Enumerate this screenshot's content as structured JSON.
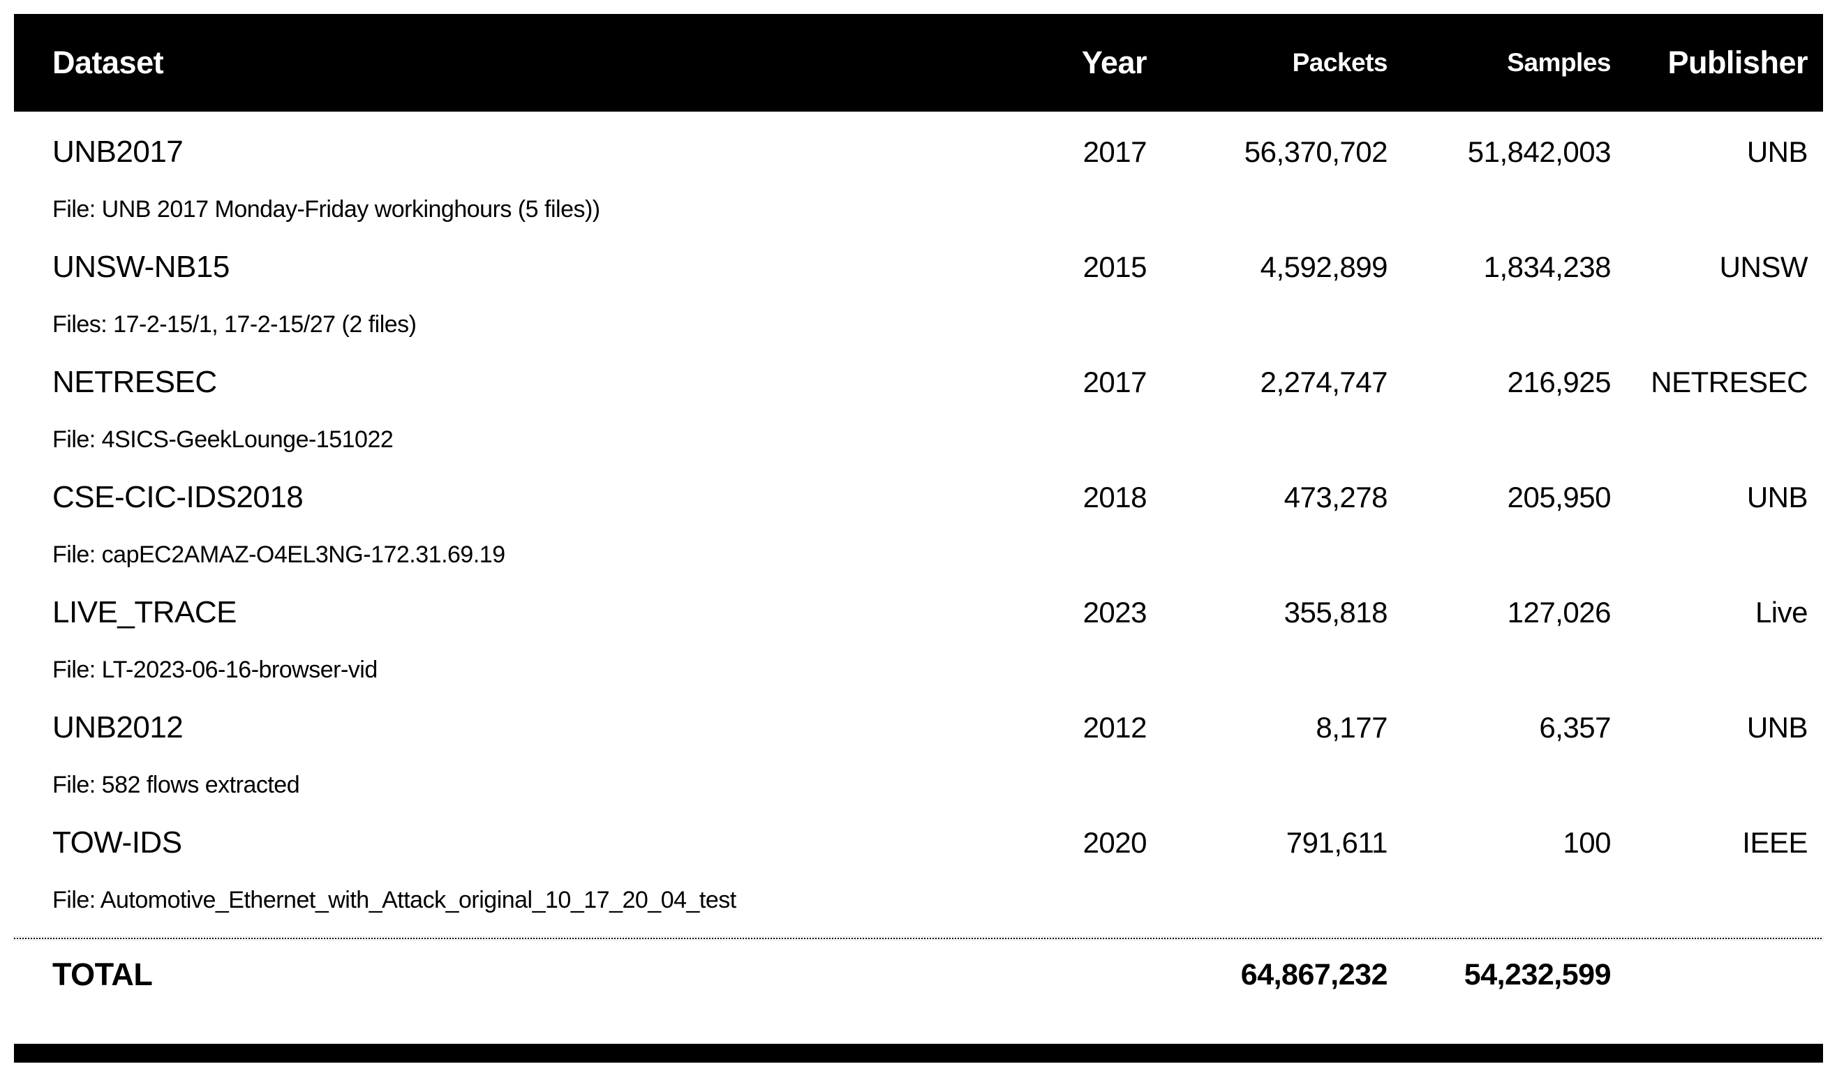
{
  "table": {
    "columns": {
      "dataset": "Dataset",
      "year": "Year",
      "packets": "Packets",
      "samples": "Samples",
      "publisher": "Publisher"
    },
    "rows": [
      {
        "name": "UNB2017",
        "year": "2017",
        "packets": "56,370,702",
        "samples": "51,842,003",
        "publisher": "UNB",
        "file": "File: UNB 2017 Monday-Friday workinghours (5 files))"
      },
      {
        "name": "UNSW-NB15",
        "year": "2015",
        "packets": "4,592,899",
        "samples": "1,834,238",
        "publisher": "UNSW",
        "file": "Files: 17-2-15/1, 17-2-15/27 (2 files)"
      },
      {
        "name": "NETRESEC",
        "year": "2017",
        "packets": "2,274,747",
        "samples": "216,925",
        "publisher": "NETRESEC",
        "file": "File: 4SICS-GeekLounge-151022"
      },
      {
        "name": "CSE-CIC-IDS2018",
        "year": "2018",
        "packets": "473,278",
        "samples": "205,950",
        "publisher": "UNB",
        "file": "File: capEC2AMAZ-O4EL3NG-172.31.69.19"
      },
      {
        "name": "LIVE_TRACE",
        "year": "2023",
        "packets": "355,818",
        "samples": "127,026",
        "publisher": "Live",
        "file": "File: LT-2023-06-16-browser-vid"
      },
      {
        "name": "UNB2012",
        "year": "2012",
        "packets": "8,177",
        "samples": "6,357",
        "publisher": "UNB",
        "file": "File: 582 flows extracted"
      },
      {
        "name": "TOW-IDS",
        "year": "2020",
        "packets": "791,611",
        "samples": "100",
        "publisher": "IEEE",
        "file": "File: Automotive_Ethernet_with_Attack_original_10_17_20_04_test"
      }
    ],
    "total": {
      "label": "TOTAL",
      "packets": "64,867,232",
      "samples": "54,232,599"
    }
  },
  "colors": {
    "header_bg": "#000000",
    "header_text": "#ffffff",
    "body_text": "#000000",
    "bottom_rule": "#000000"
  }
}
